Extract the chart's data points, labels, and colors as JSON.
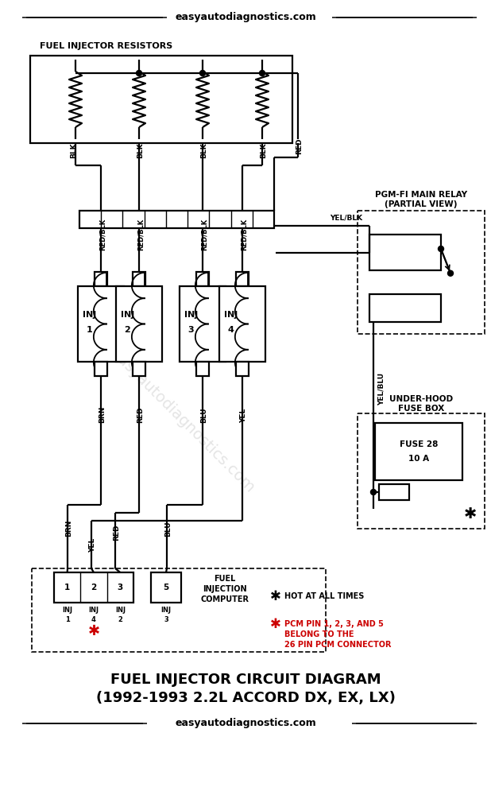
{
  "bg": "#ffffff",
  "lc": "#000000",
  "red_color": "#cc0000",
  "header": "easyautodiagnostics.com",
  "resistors_title": "FUEL INJECTOR RESISTORS",
  "relay_title1": "PGM-FI MAIN RELAY",
  "relay_title2": "(PARTIAL VIEW)",
  "fusebox_title1": "UNDER-HOOD",
  "fusebox_title2": "FUSE BOX",
  "fuse_text1": "FUSE 28",
  "fuse_text2": "10 A",
  "hot_text": "HOT AT ALL TIMES",
  "pcm_text1": "PCM PIN 1, 2, 3, AND 5",
  "pcm_text2": "BELONG TO THE",
  "pcm_text3": "26 PIN PCM CONNECTOR",
  "footer1": "FUEL INJECTOR CIRCUIT DIAGRAM",
  "footer2": "(1992-1993 2.2L ACCORD DX, EX, LX)",
  "footer3": "easyautodiagnostics.com",
  "blk": "BLK",
  "red_wire": "RED",
  "red_blk": "RED/BLK",
  "yel_blk": "YEL/BLK",
  "yel_blu": "YEL/BLU",
  "brn": "BRN",
  "yel": "YEL",
  "blu": "BLU",
  "inj_names": [
    "INJ",
    "INJ",
    "INJ",
    "INJ"
  ],
  "inj_nums": [
    "1",
    "2",
    "3",
    "4"
  ],
  "pcm_pins": [
    "1",
    "2",
    "3",
    "5"
  ],
  "pcm_bot_inj": [
    "INJ",
    "INJ",
    "INJ",
    "INJ"
  ],
  "pcm_bot_num": [
    "1",
    "4",
    "2",
    "3"
  ],
  "fuel_inj_comp": [
    "FUEL",
    "INJECTION",
    "COMPUTER"
  ],
  "watermark": "easyautodiagnostics.com"
}
